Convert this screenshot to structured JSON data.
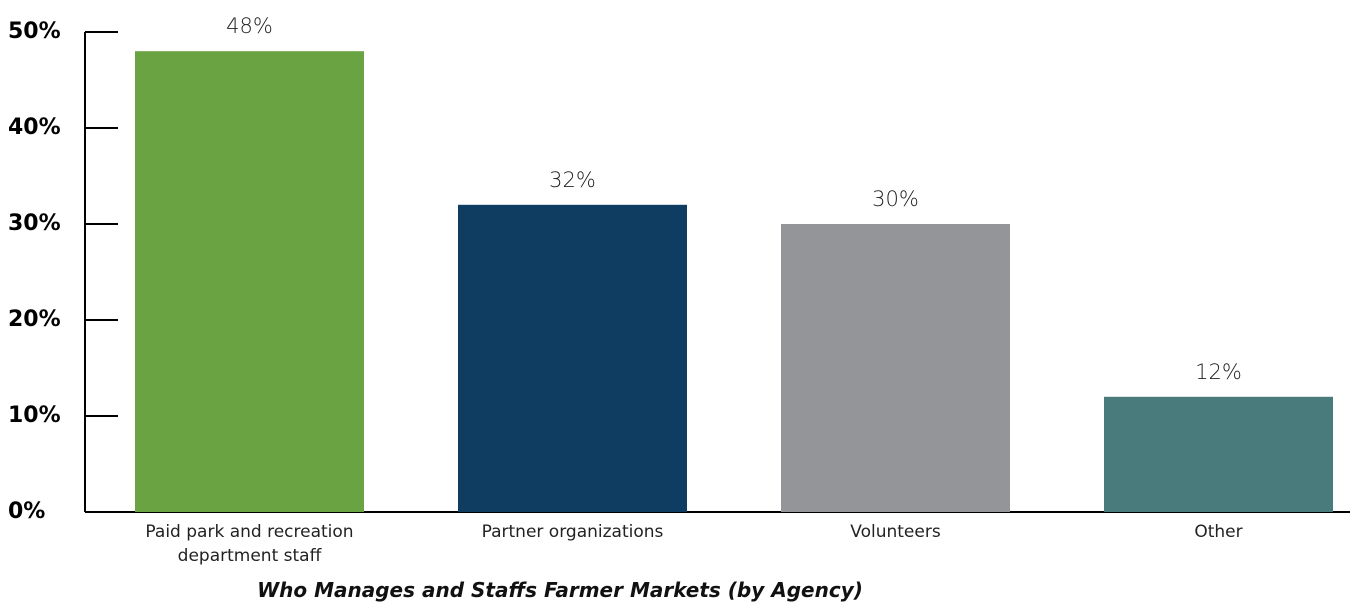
{
  "chart_data": {
    "type": "bar",
    "title": "Who Manages and Staffs Farmer Markets (by Agency)",
    "categories": [
      "Paid park and recreation department staff",
      "Partner organizations",
      "Volunteers",
      "Other"
    ],
    "values": [
      48,
      32,
      30,
      12
    ],
    "value_labels": [
      "48%",
      "32%",
      "30%",
      "12%"
    ],
    "colors": [
      "#6aa341",
      "#0e3d61",
      "#939598",
      "#497b7c"
    ],
    "ylim": [
      0,
      50
    ],
    "yticks": [
      {
        "value": 0,
        "label": "0%"
      },
      {
        "value": 10,
        "label": "10%"
      },
      {
        "value": 20,
        "label": "20%"
      },
      {
        "value": 30,
        "label": "30%"
      },
      {
        "value": 40,
        "label": "40%"
      },
      {
        "value": 50,
        "label": "50%"
      }
    ],
    "grid": false
  }
}
